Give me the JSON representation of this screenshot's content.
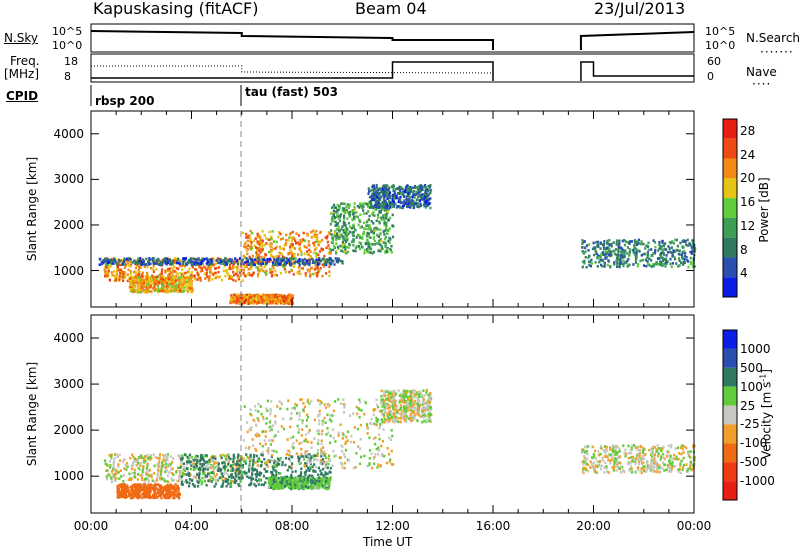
{
  "header": {
    "station": "Kapuskasing (fitACF)",
    "beam": "Beam 04",
    "date": "23/Jul/2013"
  },
  "status_panel": {
    "nsky_label": "N.Sky",
    "nsky_ticks": [
      "10^5",
      "10^0"
    ],
    "nsearch_label": "N.Search",
    "nsearch_ticks": [
      "10^5",
      "10^0"
    ],
    "freq_label_line1": "Freq.",
    "freq_label_line2": "[MHz]",
    "freq_ticks": [
      "18",
      "8"
    ],
    "nave_label": "Nave",
    "nave_ticks": [
      "60",
      "0"
    ],
    "cpid_label": "CPID",
    "cpid_segments": [
      {
        "name": "rbsp 200",
        "start_hour": 0
      },
      {
        "name": "tau (fast) 503",
        "start_hour": 6
      }
    ]
  },
  "colors": {
    "power_scale": [
      "#0a1ee6",
      "#2a4fb0",
      "#2f7a60",
      "#3d9e55",
      "#5fcc3a",
      "#e6c414",
      "#f08a14",
      "#f04a14",
      "#e61e14"
    ],
    "velocity_scale": [
      "#0a1ee6",
      "#2a4fb0",
      "#2f7a60",
      "#5fcc3a",
      "#c8c8c2",
      "#f0a02a",
      "#f06a14",
      "#f03a14",
      "#e61e14"
    ]
  },
  "chart_data": [
    {
      "type": "heatmap",
      "title": "",
      "xlabel": "Time UT",
      "ylabel": "Slant Range [km]",
      "x_ticks": [
        "00:00",
        "04:00",
        "08:00",
        "12:00",
        "16:00",
        "20:00",
        "00:00"
      ],
      "xlim_hours": [
        0,
        24
      ],
      "ylim": [
        200,
        4500
      ],
      "y_ticks": [
        1000,
        2000,
        3000,
        4000
      ],
      "colorbar_label": "Power [dB]",
      "colorbar_ticks": [
        4,
        8,
        12,
        16,
        20,
        24,
        28
      ],
      "colorbar_range": [
        0,
        30
      ],
      "regions": [
        {
          "hours": [
            0.5,
            6.0
          ],
          "range_km": [
            800,
            1300
          ],
          "value": 22
        },
        {
          "hours": [
            1.5,
            4.0
          ],
          "range_km": [
            550,
            900
          ],
          "value": 20
        },
        {
          "hours": [
            6.0,
            9.5
          ],
          "range_km": [
            900,
            1900
          ],
          "value": 21
        },
        {
          "hours": [
            9.5,
            12.0
          ],
          "range_km": [
            1400,
            2500
          ],
          "value": 12
        },
        {
          "hours": [
            11.0,
            13.5
          ],
          "range_km": [
            2400,
            2900
          ],
          "value": 7
        },
        {
          "hours": [
            5.5,
            8.0
          ],
          "range_km": [
            300,
            500
          ],
          "value": 22
        },
        {
          "hours": [
            19.5,
            24.0
          ],
          "range_km": [
            1100,
            1700
          ],
          "value": 9
        },
        {
          "hours": [
            0.3,
            10.0
          ],
          "range_km": [
            1150,
            1300
          ],
          "value": 6
        }
      ]
    },
    {
      "type": "heatmap",
      "title": "",
      "xlabel": "Time UT",
      "ylabel": "Slant Range [km]",
      "x_ticks": [
        "00:00",
        "04:00",
        "08:00",
        "12:00",
        "16:00",
        "20:00",
        "00:00"
      ],
      "xlim_hours": [
        0,
        24
      ],
      "ylim": [
        200,
        4500
      ],
      "y_ticks": [
        1000,
        2000,
        3000,
        4000
      ],
      "colorbar_label": "Velocity [m s^-1]",
      "colorbar_ticks": [
        "1000",
        "500",
        "100",
        "25",
        "-25",
        "-100",
        "-500",
        "-1000"
      ],
      "regions": [
        {
          "hours": [
            0.5,
            6.0
          ],
          "range_km": [
            900,
            1500
          ],
          "value": 0
        },
        {
          "hours": [
            1.0,
            3.5
          ],
          "range_km": [
            550,
            850
          ],
          "value": -300
        },
        {
          "hours": [
            3.5,
            9.5
          ],
          "range_km": [
            800,
            1500
          ],
          "value": 150
        },
        {
          "hours": [
            6.0,
            12.0
          ],
          "range_km": [
            1200,
            2700
          ],
          "value": 0
        },
        {
          "hours": [
            7.0,
            9.5
          ],
          "range_km": [
            750,
            1000
          ],
          "value": 80
        },
        {
          "hours": [
            11.5,
            13.5
          ],
          "range_km": [
            2200,
            2900
          ],
          "value": 0
        },
        {
          "hours": [
            19.5,
            24.0
          ],
          "range_km": [
            1100,
            1700
          ],
          "value": 0
        }
      ]
    }
  ]
}
